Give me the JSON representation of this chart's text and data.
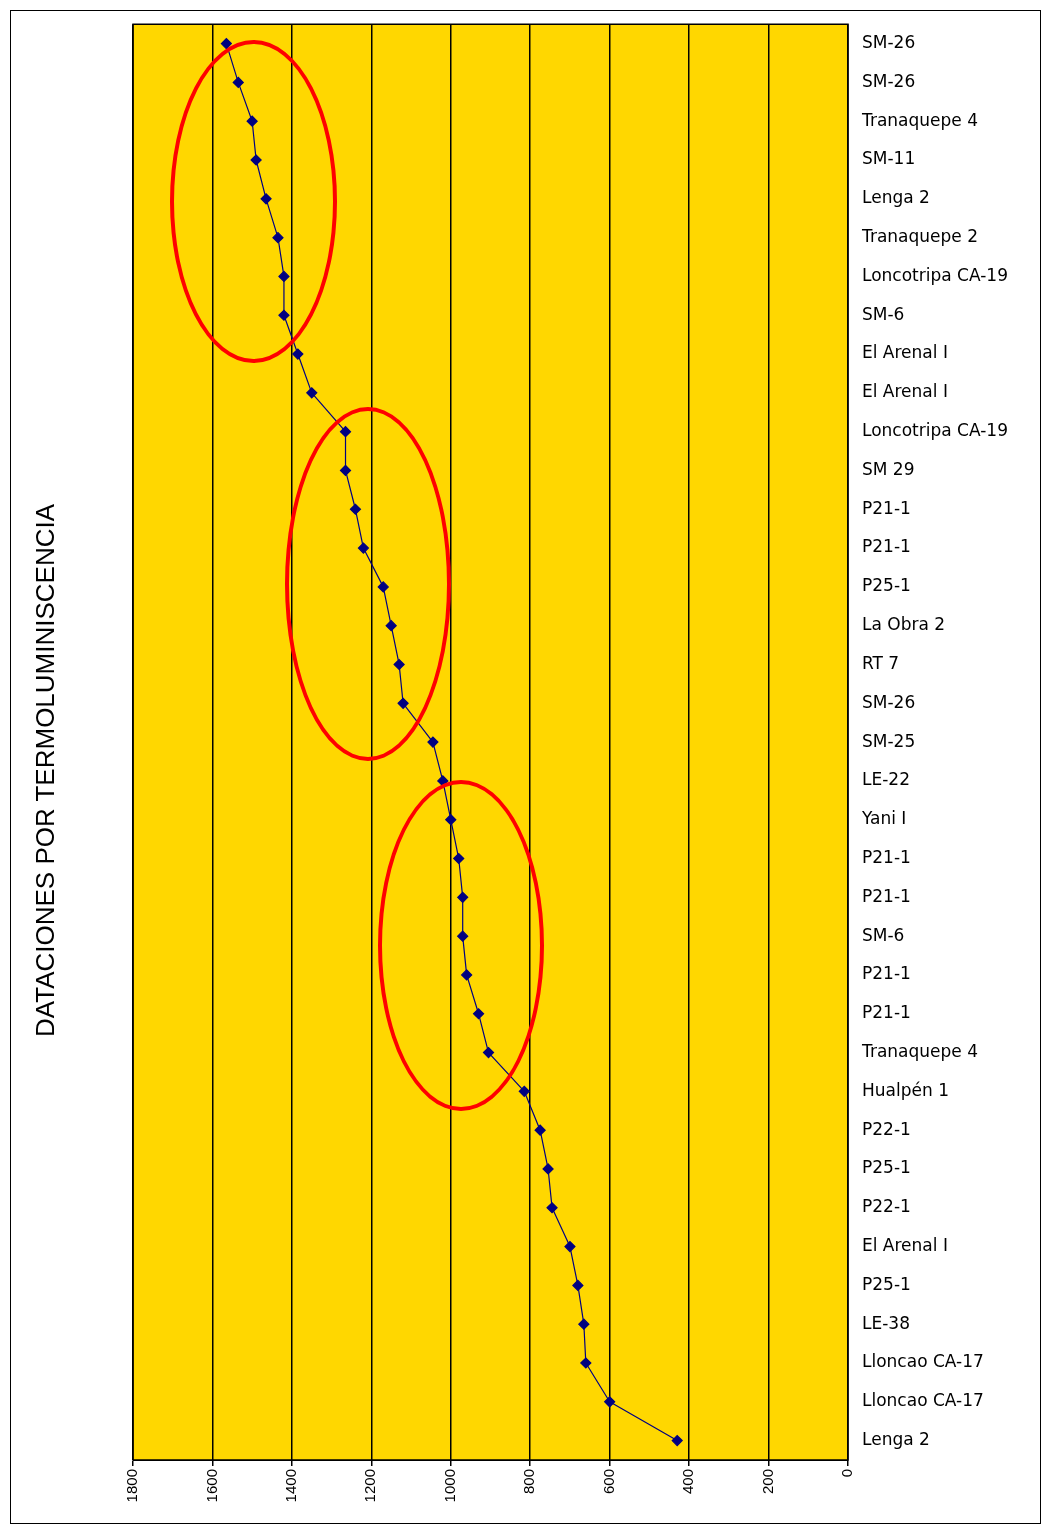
{
  "chart_data": {
    "type": "line",
    "orientation": "horizontal",
    "title": "DATACIONES POR TERMOLUMINISCENCIA",
    "categories": [
      "SM-26",
      "SM-26",
      "Tranaquepe 4",
      "SM-11",
      "Lenga 2",
      "Tranaquepe 2",
      "Loncotripa CA-19",
      "SM-6",
      "El Arenal I",
      "El Arenal I",
      "Loncotripa CA-19",
      "SM 29",
      "P21-1",
      "P21-1",
      "P25-1",
      "La Obra 2",
      "RT 7",
      "SM-26",
      "SM-25",
      "LE-22",
      "Yani I",
      "P21-1",
      "P21-1",
      "SM-6",
      "P21-1",
      "P21-1",
      "Tranaquepe 4",
      "Hualpén 1",
      "P22-1",
      "P25-1",
      "P22-1",
      "El Arenal I",
      "P25-1",
      "LE-38",
      "Lloncao CA-17",
      "Lloncao CA-17",
      "Lenga 2"
    ],
    "values": [
      1565,
      1535,
      1500,
      1490,
      1465,
      1435,
      1420,
      1420,
      1385,
      1350,
      1265,
      1265,
      1240,
      1220,
      1170,
      1150,
      1130,
      1120,
      1045,
      1020,
      1000,
      980,
      970,
      970,
      960,
      930,
      905,
      815,
      775,
      755,
      745,
      700,
      680,
      665,
      660,
      600,
      430
    ],
    "color": "#000080",
    "marker": "diamond",
    "line_style": "solid",
    "xlim": [
      1800,
      0
    ],
    "xticks": [
      1800,
      1600,
      1400,
      1200,
      1000,
      800,
      600,
      400,
      200,
      0
    ],
    "grid": "x"
  }
}
